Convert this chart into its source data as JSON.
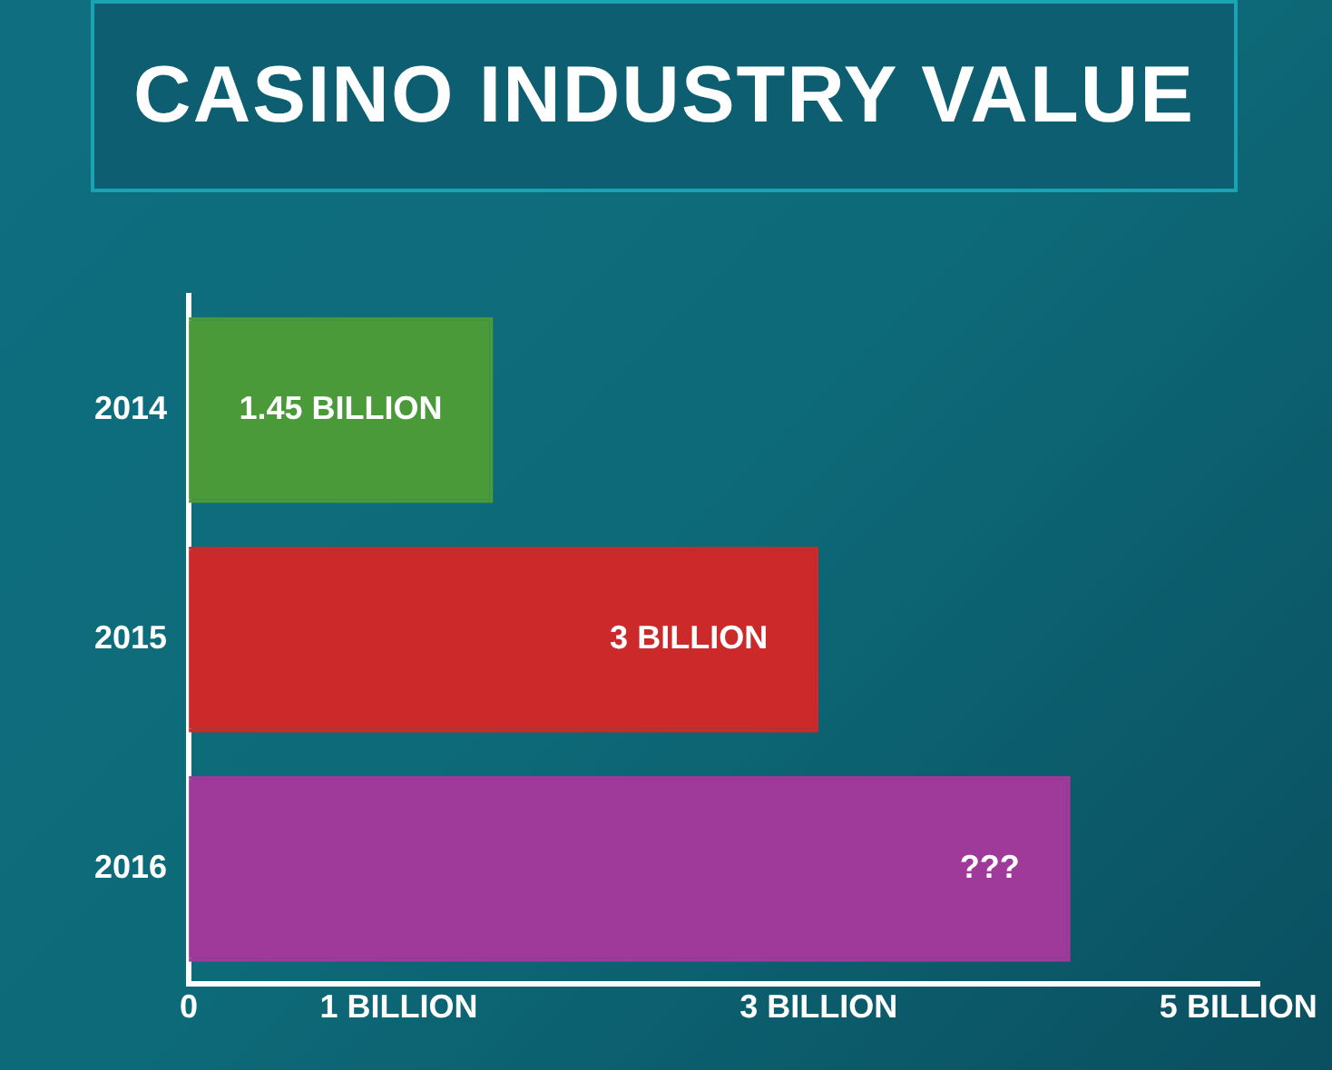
{
  "chart_data": {
    "type": "bar",
    "title": "CASINO INDUSTRY VALUE",
    "orientation": "horizontal",
    "categories": [
      "2014",
      "2015",
      "2016"
    ],
    "values": [
      1.45,
      3,
      4.2
    ],
    "value_labels": [
      "1.45 BILLION",
      "3 BILLION",
      "???"
    ],
    "colors": [
      "#4a9a3a",
      "#cc2a2a",
      "#a03a9a"
    ],
    "xlim": [
      0,
      5.1
    ],
    "xticks": [
      0,
      {
        "value": 1,
        "label": "1 BILLION"
      },
      {
        "value": 3,
        "label": "3 BILLION"
      },
      {
        "value": 5,
        "label": "5 BILLION"
      }
    ],
    "grid": false,
    "legend": false
  }
}
